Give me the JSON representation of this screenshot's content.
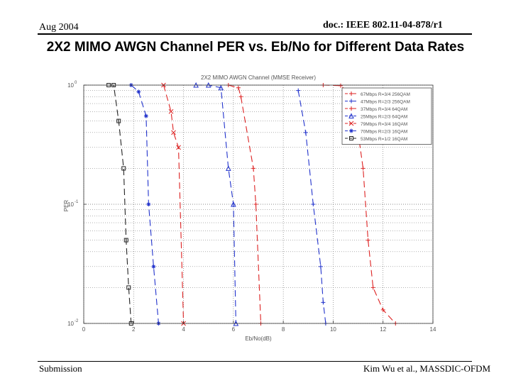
{
  "header": {
    "date": "Aug 2004",
    "doc_id": "doc.: IEEE 802.11-04-878/r1"
  },
  "slide_title": "2X2 MIMO AWGN Channel PER vs. Eb/No for Different Data Rates",
  "footer": {
    "left": "Submission",
    "right": "Kim Wu et al., MASSDIC-OFDM"
  },
  "chart_data": {
    "type": "line",
    "title": "2X2 MIMO AWGN Channel (MMSE Receiver)",
    "xlabel": "Eb/No(dB)",
    "ylabel": "PER",
    "xlim": [
      0,
      14
    ],
    "ylim": [
      0.01,
      1
    ],
    "yscale": "log",
    "grid": true,
    "legend_position": "top-right",
    "x_ticks": [
      "0",
      "2",
      "4",
      "6",
      "8",
      "10",
      "12",
      "14"
    ],
    "y_ticks": [
      {
        "base": "10",
        "exp": "0",
        "value": 1
      },
      {
        "base": "10",
        "exp": "-1",
        "value": 0.1
      },
      {
        "base": "10",
        "exp": "-2",
        "value": 0.01
      }
    ],
    "series": [
      {
        "name": "67Mbps R=3/4 256QAM",
        "color": "#dd2222",
        "dash": "9,5",
        "marker": "+",
        "x": [
          9.6,
          10.3,
          10.8,
          11.2,
          11.4,
          11.6,
          12.0,
          12.5
        ],
        "y": [
          1,
          0.99,
          0.8,
          0.2,
          0.05,
          0.02,
          0.013,
          0.01
        ]
      },
      {
        "name": "47Mbps R=2/3 256QAM",
        "color": "#2233cc",
        "dash": "9,5",
        "marker": "+",
        "x": [
          8.6,
          8.9,
          9.2,
          9.5,
          9.6,
          9.7
        ],
        "y": [
          0.9,
          0.4,
          0.1,
          0.03,
          0.015,
          0.01
        ]
      },
      {
        "name": "37Mbps R=3/4 64QAM",
        "color": "#dd2222",
        "dash": "9,5",
        "marker": "+",
        "x": [
          5.8,
          6.2,
          6.3,
          6.8,
          6.9,
          7.1
        ],
        "y": [
          1,
          0.95,
          0.8,
          0.2,
          0.1,
          0.01
        ]
      },
      {
        "name": "25Mbps R=2/3 64QAM",
        "color": "#2233cc",
        "dash": "9,5",
        "marker": "^",
        "x": [
          4.5,
          5.0,
          5.5,
          5.8,
          6.0,
          6.1
        ],
        "y": [
          1,
          1,
          0.95,
          0.2,
          0.1,
          0.01
        ]
      },
      {
        "name": "79Mbps R=3/4 16QAM",
        "color": "#dd2222",
        "dash": "9,5",
        "marker": "x",
        "x": [
          3.2,
          3.5,
          3.6,
          3.8,
          4.0
        ],
        "y": [
          1,
          0.6,
          0.4,
          0.3,
          0.01
        ]
      },
      {
        "name": "70Mbps R=2/3 16QAM",
        "color": "#2233cc",
        "dash": "9,5",
        "marker": "*",
        "x": [
          1.9,
          2.2,
          2.5,
          2.6,
          2.8,
          3.0
        ],
        "y": [
          1,
          0.88,
          0.55,
          0.1,
          0.03,
          0.01
        ]
      },
      {
        "name": "53Mbps R=1/2 16QAM",
        "color": "#222222",
        "dash": "9,5",
        "marker": "s",
        "x": [
          1.0,
          1.2,
          1.4,
          1.6,
          1.7,
          1.8,
          1.9
        ],
        "y": [
          1,
          1,
          0.5,
          0.2,
          0.05,
          0.02,
          0.01
        ]
      }
    ]
  }
}
